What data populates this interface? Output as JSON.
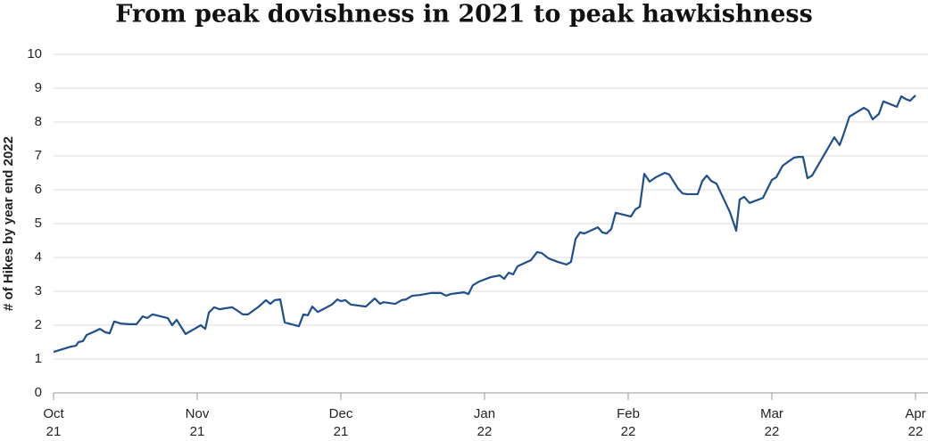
{
  "chart_data": {
    "type": "line",
    "title": "From peak dovishness in 2021 to peak hawkishness",
    "y_label": "# of Hikes by year end 2022",
    "x": [
      0,
      0.062,
      0.124,
      0.155,
      0.174,
      0.205,
      0.23,
      0.273,
      0.323,
      0.36,
      0.391,
      0.422,
      0.466,
      0.528,
      0.578,
      0.621,
      0.652,
      0.689,
      0.745,
      0.795,
      0.826,
      0.857,
      0.919,
      0.981,
      1.025,
      1.056,
      1.081,
      1.118,
      1.155,
      1.242,
      1.273,
      1.317,
      1.354,
      1.429,
      1.478,
      1.509,
      1.54,
      1.578,
      1.609,
      1.708,
      1.739,
      1.77,
      1.801,
      1.839,
      1.876,
      1.938,
      1.975,
      2.0,
      2.031,
      2.068,
      2.174,
      2.236,
      2.273,
      2.298,
      2.379,
      2.422,
      2.453,
      2.497,
      2.547,
      2.627,
      2.696,
      2.733,
      2.764,
      2.857,
      2.888,
      2.919,
      2.963,
      3.043,
      3.106,
      3.137,
      3.168,
      3.199,
      3.23,
      3.323,
      3.366,
      3.398,
      3.447,
      3.509,
      3.571,
      3.602,
      3.634,
      3.665,
      3.696,
      3.789,
      3.82,
      3.851,
      3.882,
      3.913,
      4.019,
      4.05,
      4.081,
      4.112,
      4.149,
      4.193,
      4.255,
      4.286,
      4.348,
      4.379,
      4.41,
      4.484,
      4.516,
      4.547,
      4.578,
      4.615,
      4.708,
      4.752,
      4.776,
      4.807,
      4.845,
      4.938,
      5.0,
      5.031,
      5.075,
      5.155,
      5.186,
      5.217,
      5.248,
      5.28,
      5.435,
      5.472,
      5.497,
      5.54,
      5.64,
      5.671,
      5.702,
      5.745,
      5.776,
      5.87,
      5.901,
      5.932,
      5.963,
      6.0
    ],
    "series": [
      {
        "name": "# of Hikes",
        "color": "#1f4e8c",
        "values": [
          1.21,
          1.29,
          1.37,
          1.39,
          1.5,
          1.53,
          1.71,
          1.79,
          1.89,
          1.79,
          1.76,
          2.11,
          2.05,
          2.03,
          2.03,
          2.26,
          2.21,
          2.32,
          2.26,
          2.21,
          2.0,
          2.16,
          1.74,
          1.89,
          2.0,
          1.89,
          2.37,
          2.53,
          2.47,
          2.53,
          2.45,
          2.32,
          2.32,
          2.55,
          2.74,
          2.63,
          2.74,
          2.76,
          2.08,
          1.97,
          2.32,
          2.29,
          2.55,
          2.39,
          2.47,
          2.61,
          2.76,
          2.71,
          2.74,
          2.61,
          2.55,
          2.79,
          2.63,
          2.68,
          2.63,
          2.74,
          2.76,
          2.87,
          2.89,
          2.95,
          2.95,
          2.87,
          2.92,
          2.97,
          2.92,
          3.18,
          3.29,
          3.42,
          3.47,
          3.37,
          3.55,
          3.5,
          3.74,
          3.92,
          4.16,
          4.13,
          3.97,
          3.87,
          3.79,
          3.87,
          4.55,
          4.74,
          4.71,
          4.89,
          4.74,
          4.71,
          4.84,
          5.32,
          5.21,
          5.42,
          5.5,
          6.47,
          6.24,
          6.37,
          6.5,
          6.45,
          6.03,
          5.89,
          5.87,
          5.87,
          6.26,
          6.42,
          6.26,
          6.18,
          5.34,
          4.79,
          5.71,
          5.79,
          5.61,
          5.76,
          6.29,
          6.37,
          6.71,
          6.95,
          6.97,
          6.97,
          6.34,
          6.42,
          7.55,
          7.32,
          7.61,
          8.16,
          8.42,
          8.34,
          8.08,
          8.24,
          8.61,
          8.45,
          8.76,
          8.68,
          8.63,
          8.79
        ]
      }
    ],
    "xlim": [
      0,
      6
    ],
    "xticks": [
      {
        "value": 0,
        "label": "Oct\n21"
      },
      {
        "value": 1,
        "label": "Nov\n21"
      },
      {
        "value": 2,
        "label": "Dec\n21"
      },
      {
        "value": 3,
        "label": "Jan\n22"
      },
      {
        "value": 4,
        "label": "Feb\n22"
      },
      {
        "value": 5,
        "label": "Mar\n22"
      },
      {
        "value": 6,
        "label": "Apr\n22"
      }
    ],
    "ylim": [
      0,
      10
    ],
    "yticks": [
      0,
      1,
      2,
      3,
      4,
      5,
      6,
      7,
      8,
      9,
      10
    ],
    "grid": true
  }
}
